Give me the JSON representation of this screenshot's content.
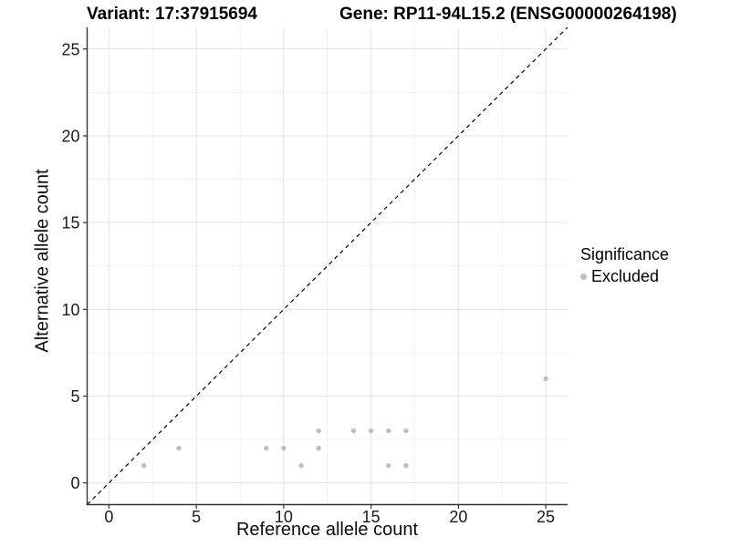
{
  "header": {
    "variant_title": "Variant: 17:37915694",
    "gene_title": "Gene: RP11-94L15.2 (ENSG00000264198)"
  },
  "chart_data": {
    "type": "scatter",
    "title": "Variant: 17:37915694 / Gene: RP11-94L15.2 (ENSG00000264198)",
    "xlabel": "Reference allele count",
    "ylabel": "Alternative allele count",
    "xlim": [
      -1.25,
      26.25
    ],
    "ylim": [
      -1.25,
      26.25
    ],
    "x_ticks": [
      0,
      5,
      10,
      15,
      20,
      25
    ],
    "y_ticks": [
      0,
      5,
      10,
      15,
      20,
      25
    ],
    "minor_gridlines": [
      2.5,
      7.5,
      12.5,
      17.5,
      22.5
    ],
    "grid": true,
    "series": [
      {
        "name": "Excluded",
        "color": "#bebebe",
        "points": [
          [
            2,
            1
          ],
          [
            4,
            2
          ],
          [
            9,
            2
          ],
          [
            10,
            2
          ],
          [
            11,
            1
          ],
          [
            12,
            2
          ],
          [
            12,
            3
          ],
          [
            14,
            3
          ],
          [
            15,
            3
          ],
          [
            16,
            1
          ],
          [
            16,
            3
          ],
          [
            17,
            1
          ],
          [
            17,
            3
          ],
          [
            25,
            6
          ]
        ]
      }
    ],
    "identity_line": {
      "type": "dashed",
      "color": "#000000",
      "equation": "y = x"
    },
    "legend": {
      "title": "Significance",
      "position": "right",
      "items": [
        {
          "label": "Excluded",
          "color": "#bebebe"
        }
      ]
    },
    "colors": {
      "point": "#bebebe",
      "grid_major": "#e4e4e4",
      "grid_minor": "#f1f1f1",
      "axis_line": "#333333",
      "tick_text": "#1a1a1a"
    }
  }
}
